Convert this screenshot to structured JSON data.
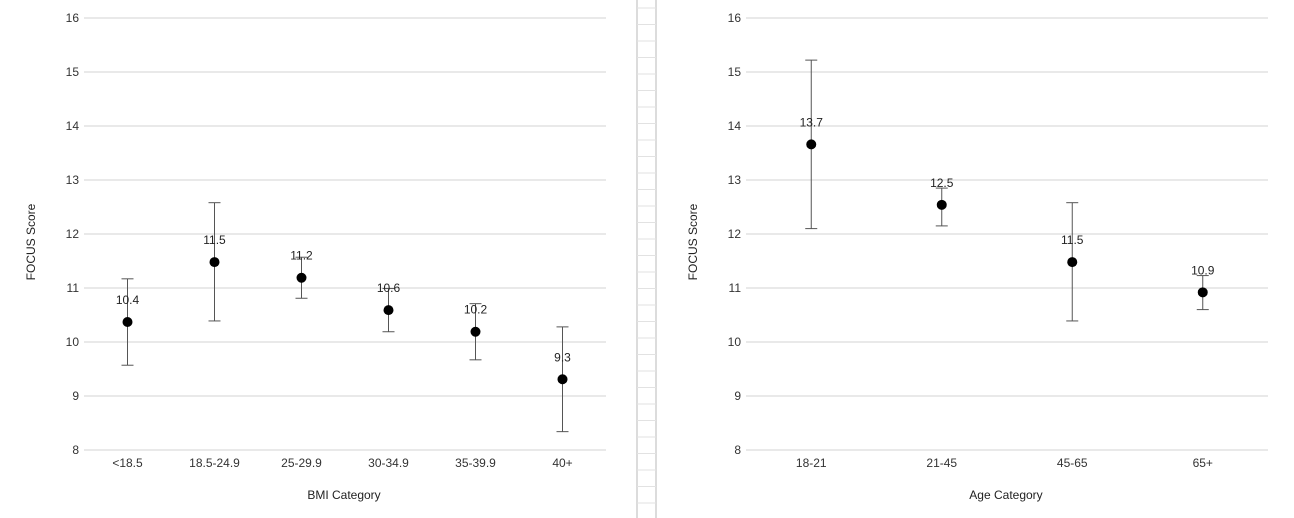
{
  "chart_data": [
    {
      "type": "scatter",
      "title": "",
      "xlabel": "BMI Category",
      "ylabel": "FOCUS Score",
      "ylim": [
        8,
        16
      ],
      "yticks": [
        8,
        9,
        10,
        11,
        12,
        13,
        14,
        15,
        16
      ],
      "grid": true,
      "categories": [
        "<18.5",
        "18.5-24.9",
        "25-29.9",
        "30-34.9",
        "35-39.9",
        "40+"
      ],
      "values": [
        10.37,
        11.48,
        11.19,
        10.59,
        10.19,
        9.31
      ],
      "labels": [
        "10.4",
        "11.5",
        "11.2",
        "10.6",
        "10.2",
        "9.3"
      ],
      "error_low": [
        9.57,
        10.39,
        10.81,
        10.19,
        9.67,
        8.34
      ],
      "error_high": [
        11.17,
        12.58,
        11.57,
        10.99,
        10.71,
        10.28
      ]
    },
    {
      "type": "scatter",
      "title": "",
      "xlabel": "Age Category",
      "ylabel": "FOCUS Score",
      "ylim": [
        8,
        16
      ],
      "yticks": [
        8,
        9,
        10,
        11,
        12,
        13,
        14,
        15,
        16
      ],
      "grid": true,
      "categories": [
        "18-21",
        "21-45",
        "45-65",
        "65+"
      ],
      "values": [
        13.66,
        12.54,
        11.48,
        10.92
      ],
      "labels": [
        "13.7",
        "12.5",
        "11.5",
        "10.9"
      ],
      "error_low": [
        12.1,
        12.15,
        10.39,
        10.6
      ],
      "error_high": [
        15.22,
        12.85,
        12.58,
        11.23
      ]
    }
  ]
}
